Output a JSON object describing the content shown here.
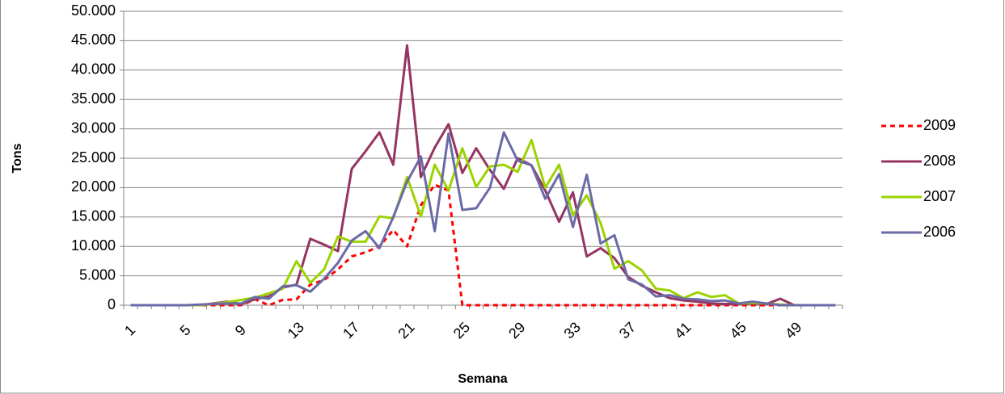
{
  "chart_data": {
    "type": "line",
    "x_label": "Semana",
    "y_label": "Tons",
    "categories": [
      "1",
      null,
      null,
      null,
      "5",
      null,
      null,
      null,
      "9",
      null,
      null,
      null,
      "13",
      null,
      null,
      null,
      "17",
      null,
      null,
      null,
      "21",
      null,
      null,
      null,
      "25",
      null,
      null,
      null,
      "29",
      null,
      null,
      null,
      "33",
      null,
      null,
      null,
      "37",
      null,
      null,
      null,
      "41",
      null,
      null,
      null,
      "45",
      null,
      null,
      null,
      "49",
      null,
      null,
      null
    ],
    "series": [
      {
        "name": "2009",
        "color": "#ff0000",
        "dashed": true,
        "values": [
          0,
          0,
          0,
          0,
          0,
          0,
          0,
          0,
          0,
          1000,
          0,
          900,
          1000,
          3500,
          4300,
          6100,
          8300,
          9000,
          10000,
          12800,
          10000,
          17000,
          20500,
          19500,
          0,
          0,
          0,
          0,
          0,
          0,
          0,
          0,
          0,
          0,
          0,
          0,
          0,
          0,
          0,
          0,
          0,
          0,
          0,
          0,
          0,
          0,
          0,
          0,
          0,
          0,
          0,
          0
        ]
      },
      {
        "name": "2008",
        "color": "#953462",
        "dashed": false,
        "values": [
          0,
          0,
          0,
          0,
          0,
          0,
          300,
          600,
          200,
          1000,
          1500,
          3000,
          3500,
          11300,
          10300,
          9200,
          23200,
          26200,
          29400,
          23900,
          44200,
          21800,
          26800,
          30800,
          22500,
          26700,
          23000,
          19800,
          25000,
          23800,
          19500,
          14200,
          19200,
          8300,
          9700,
          8000,
          4800,
          3300,
          2200,
          1200,
          800,
          600,
          300,
          200,
          200,
          300,
          200,
          1100,
          0,
          0,
          0,
          0
        ]
      },
      {
        "name": "2007",
        "color": "#9bd300",
        "dashed": false,
        "values": [
          0,
          0,
          0,
          0,
          0,
          0,
          200,
          500,
          900,
          1300,
          2000,
          2800,
          7500,
          3800,
          6100,
          11700,
          10800,
          10800,
          15100,
          14800,
          21800,
          15100,
          23900,
          19500,
          26700,
          20100,
          23600,
          23900,
          22700,
          28100,
          20000,
          23900,
          15300,
          18700,
          14000,
          6200,
          7500,
          5900,
          2800,
          2500,
          1200,
          2200,
          1400,
          1700,
          300,
          400,
          300,
          100,
          0,
          0,
          0,
          0
        ]
      },
      {
        "name": "2006",
        "color": "#6a6aa8",
        "dashed": false,
        "values": [
          0,
          0,
          0,
          0,
          0,
          100,
          200,
          300,
          300,
          1400,
          1100,
          3200,
          3400,
          2300,
          4500,
          7200,
          11000,
          12600,
          9700,
          15000,
          21000,
          25300,
          12600,
          29200,
          16200,
          16500,
          20000,
          29400,
          24600,
          23800,
          18100,
          22300,
          13300,
          22200,
          10500,
          11900,
          4400,
          3500,
          1500,
          1700,
          1100,
          1000,
          700,
          800,
          300,
          600,
          300,
          0,
          0,
          0,
          0,
          0
        ]
      }
    ],
    "ylim": [
      0,
      50000
    ],
    "yticks": [
      0,
      {
        "value": 5000,
        "label": "5.000"
      },
      {
        "value": 10000,
        "label": "10.000"
      },
      {
        "value": 15000,
        "label": "15.000"
      },
      {
        "value": 20000,
        "label": "20.000"
      },
      {
        "value": 25000,
        "label": "25.000"
      },
      {
        "value": 30000,
        "label": "30.000"
      },
      {
        "value": 35000,
        "label": "35.000"
      },
      {
        "value": 40000,
        "label": "40.000"
      },
      {
        "value": 45000,
        "label": "45.000"
      },
      {
        "value": 50000,
        "label": "50.000"
      }
    ],
    "grid": true,
    "legend": "right"
  }
}
